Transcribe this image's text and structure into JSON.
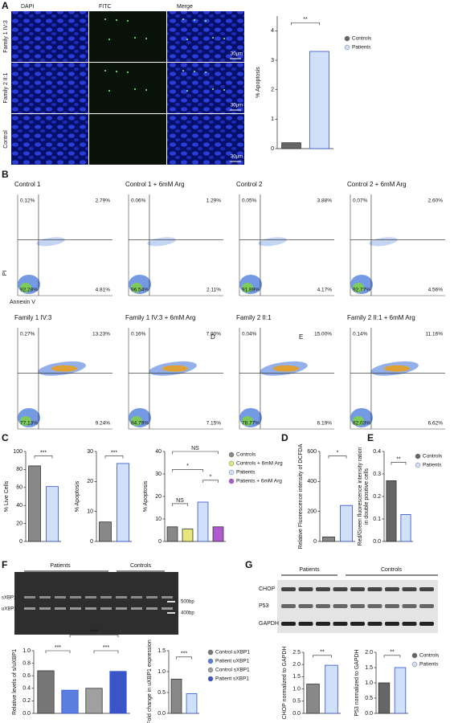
{
  "panels": [
    "A",
    "B",
    "C",
    "D",
    "E",
    "F",
    "G"
  ],
  "microscopy": {
    "columns": [
      "DAPI",
      "FITC",
      "Merge"
    ],
    "rows": [
      "Family 1 IV:3",
      "Family 2 II:1",
      "Control"
    ],
    "scale_bar": "30μm"
  },
  "flow": {
    "y_label": "PI",
    "x_label": "Annexin V",
    "overlay_labels": [
      "D",
      "E"
    ],
    "plots": [
      {
        "title": "Control 1",
        "quadrants": [
          "0.12%",
          "2.79%",
          "92.28%",
          "4.81%"
        ]
      },
      {
        "title": "Control 1 + 6mM Arg",
        "quadrants": [
          "0.06%",
          "1.29%",
          "96.54%",
          "2.11%"
        ]
      },
      {
        "title": "Control 2",
        "quadrants": [
          "0.05%",
          "3.88%",
          "91.89%",
          "4.17%"
        ]
      },
      {
        "title": "Control 2 + 6mM Arg",
        "quadrants": [
          "0.07%",
          "2.60%",
          "92.77%",
          "4.56%"
        ]
      },
      {
        "title": "Family 1 IV:3",
        "quadrants": [
          "0.27%",
          "13.23%",
          "77.13%",
          "9.24%"
        ]
      },
      {
        "title": "Family 1 IV:3 + 6mM Arg",
        "quadrants": [
          "0.16%",
          "7.90%",
          "84.79%",
          "7.15%"
        ]
      },
      {
        "title": "Family 2 II:1",
        "quadrants": [
          "0.04%",
          "15.00%",
          "78.77%",
          "6.19%"
        ]
      },
      {
        "title": "Family 2 II:1 + 6mM Arg",
        "quadrants": [
          "0.14%",
          "11.16%",
          "82.03%",
          "6.62%"
        ]
      }
    ]
  },
  "gel": {
    "groups": [
      "Patients",
      "Controls"
    ],
    "bands": [
      "sXBP1",
      "uXBP1"
    ],
    "markers": [
      "500bp",
      "400bp"
    ]
  },
  "western": {
    "groups": [
      "Patients",
      "Controls"
    ],
    "proteins": [
      "CHOP",
      "P53",
      "GAPDH"
    ]
  },
  "chart_data": [
    {
      "type": "bar",
      "y_label": "% Apoptosis",
      "categories": [
        "Controls",
        "Patients"
      ],
      "values": [
        0.2,
        3.3
      ],
      "colors": [
        "#666666",
        "#cfe0f8"
      ],
      "ylim": [
        0,
        4.5
      ],
      "yticks": [
        0,
        1,
        2,
        3,
        4
      ],
      "legend": true,
      "annotations": [
        "**"
      ]
    },
    {
      "type": "bar",
      "y_label": "% Live Cells",
      "categories": [
        null,
        null
      ],
      "values": [
        84,
        61
      ],
      "colors": [
        "#888888",
        "#cfe0f8"
      ],
      "ylim": [
        0,
        100
      ],
      "yticks": [
        0,
        20,
        40,
        60,
        80,
        100
      ],
      "legend": false,
      "annotations": [
        "***"
      ]
    },
    {
      "type": "bar",
      "y_label": "% Apoptosis",
      "categories": [
        null,
        null
      ],
      "values": [
        6.5,
        26
      ],
      "colors": [
        "#888888",
        "#cfe0f8"
      ],
      "ylim": [
        0,
        30
      ],
      "yticks": [
        0,
        10,
        20,
        30
      ],
      "legend": false,
      "annotations": [
        "***"
      ]
    },
    {
      "type": "bar",
      "y_label": "% Apoptosis",
      "categories": [
        "Controls",
        "Controls + 6mM Arg",
        "Patients",
        "Patients + 6mM Arg"
      ],
      "values": [
        6.5,
        5.5,
        17.5,
        6.5
      ],
      "colors": [
        "#888888",
        "#e6e67a",
        "#cfe0f8",
        "#b05ad0"
      ],
      "ylim": [
        0,
        40
      ],
      "yticks": [
        0,
        10,
        20,
        30,
        40
      ],
      "legend": true,
      "annotations": [
        "NS",
        "*",
        "*",
        "NS"
      ]
    },
    {
      "type": "bar",
      "y_label": "Relative Fluorescence intensity of DCFDA",
      "categories": [
        null,
        null
      ],
      "values": [
        30,
        240
      ],
      "colors": [
        "#888888",
        "#cfe0f8"
      ],
      "ylim": [
        0,
        600
      ],
      "yticks": [
        0,
        200,
        400,
        600
      ],
      "legend": false,
      "annotations": [
        "*"
      ]
    },
    {
      "type": "bar",
      "y_label": [
        "Red/Green fluorescence intensity ration",
        "in double positive cells"
      ],
      "categories": [
        "Controls",
        "Patients"
      ],
      "values": [
        0.27,
        0.12
      ],
      "colors": [
        "#666666",
        "#cfe0f8"
      ],
      "ylim": [
        0,
        0.4
      ],
      "yticks": [
        {
          "value": 0,
          "label": "0.0"
        },
        0.1,
        0.2,
        0.3,
        0.4
      ],
      "legend": true,
      "annotations": [
        "**"
      ]
    },
    {
      "type": "bar",
      "y_label": "Relative levels of s/uXBP1",
      "categories": [
        "Control uXBP1",
        "Patient uXBP1",
        "Control sXBP1",
        "Patient sXBP1"
      ],
      "values": [
        0.68,
        0.37,
        0.4,
        0.67
      ],
      "colors": [
        "#777777",
        "#5b7fe0",
        "#a0a0a0",
        "#3a55c8"
      ],
      "ylim": [
        0,
        1.0
      ],
      "yticks": [
        {
          "value": 0,
          "label": "0.0"
        },
        0.2,
        0.4,
        0.6,
        0.8,
        {
          "value": 1,
          "label": "1.0"
        }
      ],
      "legend": true,
      "annotations": [
        "****",
        "***",
        "***"
      ]
    },
    {
      "type": "bar",
      "y_label": "Fold change in uXBP1 expression",
      "categories": [
        null,
        null
      ],
      "values": [
        0.82,
        0.47
      ],
      "colors": [
        "#888888",
        "#cfe0f8"
      ],
      "ylim": [
        0,
        1.5
      ],
      "yticks": [
        {
          "value": 0,
          "label": "0.0"
        },
        0.5,
        {
          "value": 1,
          "label": "1.0"
        },
        1.5
      ],
      "legend": false,
      "annotations": [
        "***"
      ]
    },
    {
      "type": "bar",
      "y_label": "CHOP normalized to GAPDH",
      "categories": [
        null,
        null
      ],
      "values": [
        1.2,
        1.97
      ],
      "colors": [
        "#888888",
        "#cfe0f8"
      ],
      "ylim": [
        0,
        2.5
      ],
      "yticks": [
        {
          "value": 0,
          "label": "0.0"
        },
        0.5,
        {
          "value": 1,
          "label": "1.0"
        },
        1.5,
        {
          "value": 2,
          "label": "2.0"
        },
        2.5
      ],
      "legend": false,
      "annotations": [
        "**"
      ]
    },
    {
      "type": "bar",
      "y_label": "P53 normalized to GAPDH",
      "categories": [
        "Controls",
        "Patients"
      ],
      "values": [
        1.0,
        1.5
      ],
      "colors": [
        "#666666",
        "#cfe0f8"
      ],
      "ylim": [
        0,
        2.0
      ],
      "yticks": [
        {
          "value": 0,
          "label": "0.0"
        },
        0.5,
        {
          "value": 1,
          "label": "1.0"
        },
        1.5,
        {
          "value": 2,
          "label": "2.0"
        }
      ],
      "legend": true,
      "annotations": [
        "**"
      ]
    }
  ]
}
